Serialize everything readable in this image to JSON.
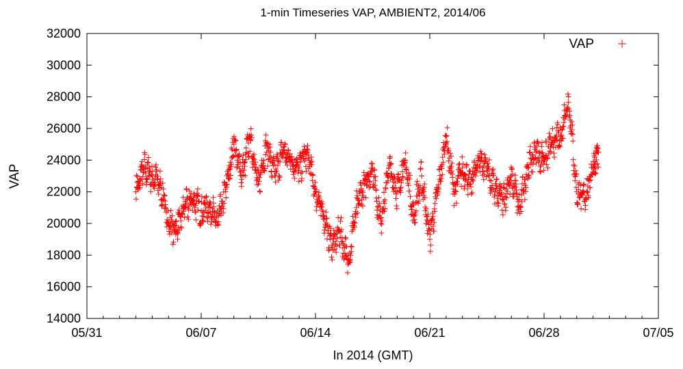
{
  "chart_data": {
    "type": "scatter",
    "title": "1-min Timeseries VAP, AMBIENT2, 2014/06",
    "xlabel": "In 2014 (GMT)",
    "ylabel": "VAP",
    "ylim": [
      14000,
      32000
    ],
    "yticks": [
      14000,
      16000,
      18000,
      20000,
      22000,
      24000,
      26000,
      28000,
      30000,
      32000
    ],
    "xlim": [
      "2014-05-31",
      "2014-07-05"
    ],
    "xticks": [
      {
        "date": "2014-05-31",
        "label": "05/31"
      },
      {
        "date": "2014-06-07",
        "label": "06/07"
      },
      {
        "date": "2014-06-14",
        "label": "06/14"
      },
      {
        "date": "2014-06-21",
        "label": "06/21"
      },
      {
        "date": "2014-06-28",
        "label": "06/28"
      },
      {
        "date": "2014-07-05",
        "label": "07/05"
      }
    ],
    "grid": false,
    "legend_position": "top-right",
    "series": [
      {
        "name": "VAP",
        "color": "#ff0000",
        "marker": "plus",
        "x": [
          "2014-06-03 00:00",
          "2014-06-03 12:00",
          "2014-06-04 00:00",
          "2014-06-04 12:00",
          "2014-06-05 00:00",
          "2014-06-05 12:00",
          "2014-06-06 00:00",
          "2014-06-06 12:00",
          "2014-06-07 00:00",
          "2014-06-07 12:00",
          "2014-06-08 00:00",
          "2014-06-08 12:00",
          "2014-06-09 00:00",
          "2014-06-09 12:00",
          "2014-06-10 00:00",
          "2014-06-10 12:00",
          "2014-06-11 00:00",
          "2014-06-11 12:00",
          "2014-06-12 00:00",
          "2014-06-12 12:00",
          "2014-06-13 00:00",
          "2014-06-13 12:00",
          "2014-06-14 00:00",
          "2014-06-14 12:00",
          "2014-06-15 00:00",
          "2014-06-15 12:00",
          "2014-06-16 00:00",
          "2014-06-16 12:00",
          "2014-06-17 00:00",
          "2014-06-17 12:00",
          "2014-06-18 00:00",
          "2014-06-18 12:00",
          "2014-06-19 00:00",
          "2014-06-19 12:00",
          "2014-06-20 00:00",
          "2014-06-20 12:00",
          "2014-06-21 00:00",
          "2014-06-21 12:00",
          "2014-06-22 00:00",
          "2014-06-22 12:00",
          "2014-06-23 00:00",
          "2014-06-23 12:00",
          "2014-06-24 00:00",
          "2014-06-24 12:00",
          "2014-06-25 00:00",
          "2014-06-25 12:00",
          "2014-06-26 00:00",
          "2014-06-26 12:00",
          "2014-06-27 00:00",
          "2014-06-27 12:00",
          "2014-06-28 00:00",
          "2014-06-28 12:00",
          "2014-06-29 00:00",
          "2014-06-29 12:00",
          "2014-06-30 00:00",
          "2014-06-30 12:00",
          "2014-07-01 00:00",
          "2014-07-01 08:00"
        ],
        "y": [
          22000,
          23500,
          23000,
          22500,
          20000,
          19500,
          21000,
          21500,
          20800,
          21200,
          20000,
          22000,
          25000,
          23000,
          25500,
          22500,
          25000,
          23000,
          24500,
          24000,
          23500,
          24500,
          22000,
          20500,
          18500,
          19500,
          17500,
          21000,
          22500,
          23500,
          20000,
          23500,
          22000,
          24000,
          20500,
          23000,
          19000,
          22000,
          25500,
          22000,
          23500,
          22500,
          24000,
          23500,
          22000,
          21500,
          23000,
          21000,
          23500,
          24500,
          24000,
          25000,
          25500,
          28000,
          22000,
          21500,
          23500,
          24500
        ]
      }
    ]
  }
}
